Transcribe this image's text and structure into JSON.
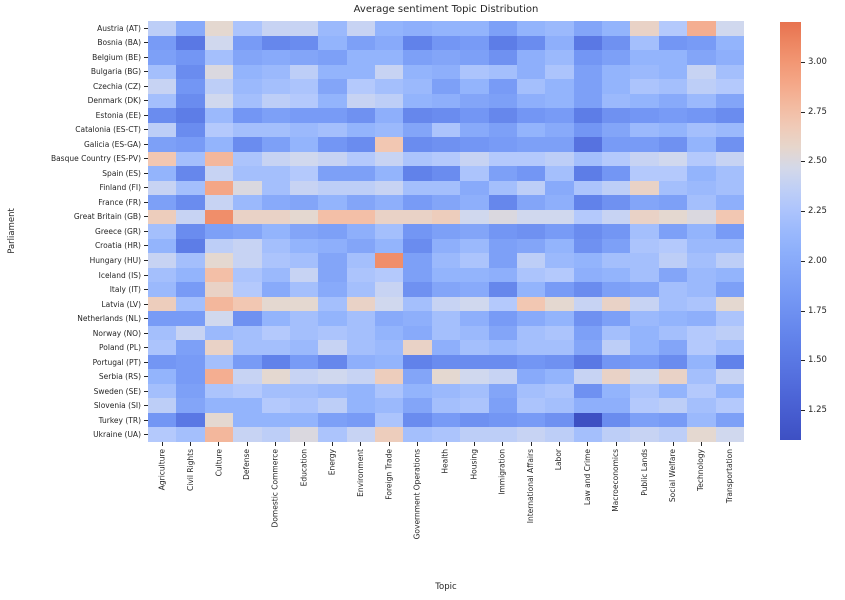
{
  "chart_data": {
    "type": "heatmap",
    "title": "Average sentiment Topic Distribution",
    "xlabel": "Topic",
    "ylabel": "Parliament",
    "colormap": "coolwarm",
    "legend_position": "right-colorbar",
    "grid": false,
    "color_scale": {
      "vmin": 1.1,
      "vmax": 3.2,
      "anchors": [
        {
          "value": 1.1,
          "color": "#3D50C3"
        },
        {
          "value": 1.35,
          "color": "#4F68DA"
        },
        {
          "value": 1.6,
          "color": "#6182EA"
        },
        {
          "value": 1.85,
          "color": "#789BF6"
        },
        {
          "value": 2.1,
          "color": "#93B4FC"
        },
        {
          "value": 2.3,
          "color": "#B4C9FC"
        },
        {
          "value": 2.45,
          "color": "#D0D8EE"
        },
        {
          "value": 2.55,
          "color": "#E4D8D0"
        },
        {
          "value": 2.7,
          "color": "#F2C7B2"
        },
        {
          "value": 2.9,
          "color": "#F4A686"
        },
        {
          "value": 3.05,
          "color": "#F08E6A"
        },
        {
          "value": 3.2,
          "color": "#E7724F"
        }
      ]
    },
    "colorbar_ticks": [
      {
        "label": "3.00",
        "value": 3.0
      },
      {
        "label": "2.75",
        "value": 2.75
      },
      {
        "label": "2.50",
        "value": 2.5
      },
      {
        "label": "2.25",
        "value": 2.25
      },
      {
        "label": "2.00",
        "value": 2.0
      },
      {
        "label": "1.75",
        "value": 1.75
      },
      {
        "label": "1.50",
        "value": 1.5
      },
      {
        "label": "1.25",
        "value": 1.25
      }
    ],
    "columns": [
      "Agriculture",
      "Civil Rights",
      "Culture",
      "Defense",
      "Domestic Commerce",
      "Education",
      "Energy",
      "Environment",
      "Foreign Trade",
      "Government Operations",
      "Health",
      "Housing",
      "Immigration",
      "International Affairs",
      "Labor",
      "Law and Crime",
      "Macroeconomics",
      "Public Lands",
      "Social Welfare",
      "Technology",
      "Transportation"
    ],
    "rows": [
      "Austria (AT)",
      "Bosnia (BA)",
      "Belgium (BE)",
      "Bulgaria (BG)",
      "Czechia (CZ)",
      "Denmark (DK)",
      "Estonia (EE)",
      "Catalonia (ES-CT)",
      "Galicia (ES-GA)",
      "Basque Country (ES-PV)",
      "Spain (ES)",
      "Finland (FI)",
      "France (FR)",
      "Great Britain (GB)",
      "Greece (GR)",
      "Croatia (HR)",
      "Hungary (HU)",
      "Iceland (IS)",
      "Italy (IT)",
      "Latvia (LV)",
      "Netherlands (NL)",
      "Norway (NO)",
      "Poland (PL)",
      "Portugal (PT)",
      "Serbia (RS)",
      "Sweden (SE)",
      "Slovenia (SI)",
      "Turkey (TR)",
      "Ukraine (UA)"
    ],
    "values": [
      [
        2.35,
        2.0,
        2.55,
        2.25,
        2.4,
        2.4,
        2.15,
        2.4,
        2.1,
        2.05,
        2.1,
        2.1,
        1.9,
        2.1,
        2.15,
        1.95,
        2.1,
        2.6,
        2.3,
        2.85,
        2.45
      ],
      [
        1.85,
        1.5,
        2.45,
        1.85,
        1.65,
        1.7,
        2.1,
        1.9,
        2.0,
        1.6,
        1.8,
        1.85,
        1.55,
        1.7,
        2.05,
        1.5,
        1.75,
        2.2,
        1.8,
        1.85,
        2.1
      ],
      [
        1.9,
        1.8,
        2.2,
        1.95,
        2.0,
        1.95,
        1.9,
        2.1,
        2.1,
        1.9,
        1.95,
        1.9,
        1.75,
        2.05,
        2.15,
        1.8,
        1.9,
        2.1,
        2.1,
        1.95,
        2.05
      ],
      [
        2.2,
        1.7,
        2.5,
        2.1,
        2.15,
        2.35,
        2.1,
        2.1,
        2.4,
        2.1,
        2.05,
        2.25,
        2.2,
        2.05,
        2.25,
        1.9,
        2.1,
        2.15,
        2.1,
        2.4,
        2.2
      ],
      [
        2.4,
        1.8,
        2.35,
        2.15,
        2.2,
        2.25,
        1.95,
        2.3,
        2.2,
        2.15,
        1.9,
        2.1,
        1.85,
        2.2,
        2.1,
        1.9,
        2.1,
        2.25,
        2.2,
        2.35,
        2.3
      ],
      [
        2.2,
        1.7,
        2.45,
        2.2,
        2.35,
        2.3,
        2.1,
        2.4,
        2.35,
        2.1,
        2.05,
        1.95,
        1.9,
        2.05,
        2.1,
        1.9,
        2.15,
        2.1,
        2.0,
        2.15,
        1.95
      ],
      [
        1.7,
        1.55,
        2.15,
        1.8,
        1.9,
        1.85,
        1.85,
        1.75,
        2.05,
        1.65,
        1.7,
        1.8,
        1.65,
        1.8,
        1.85,
        1.55,
        1.75,
        1.8,
        1.85,
        1.8,
        1.7
      ],
      [
        2.35,
        1.7,
        2.3,
        2.2,
        2.2,
        2.15,
        2.2,
        2.1,
        2.15,
        1.95,
        2.25,
        2.0,
        1.9,
        2.1,
        2.0,
        1.8,
        1.95,
        2.15,
        2.1,
        2.2,
        2.15
      ],
      [
        1.9,
        1.85,
        2.1,
        1.7,
        1.9,
        2.1,
        1.8,
        1.7,
        2.7,
        1.7,
        1.75,
        1.8,
        1.85,
        1.9,
        1.9,
        1.45,
        1.85,
        1.85,
        1.75,
        2.1,
        1.75
      ],
      [
        2.7,
        2.2,
        2.8,
        2.25,
        2.4,
        2.45,
        2.4,
        2.3,
        2.4,
        2.25,
        2.3,
        2.4,
        2.3,
        2.3,
        2.35,
        2.2,
        2.3,
        2.4,
        2.45,
        2.3,
        2.4
      ],
      [
        2.1,
        1.65,
        2.4,
        2.2,
        2.2,
        2.3,
        1.9,
        1.9,
        2.1,
        1.6,
        1.7,
        2.25,
        1.9,
        1.8,
        2.2,
        1.55,
        1.8,
        2.3,
        2.3,
        2.1,
        2.2
      ],
      [
        2.4,
        2.2,
        2.9,
        2.5,
        2.2,
        2.4,
        2.35,
        2.35,
        2.4,
        2.2,
        2.2,
        2.0,
        2.2,
        2.35,
        2.0,
        2.25,
        2.35,
        2.6,
        2.2,
        2.15,
        2.2
      ],
      [
        1.9,
        1.7,
        2.4,
        2.15,
        2.0,
        1.95,
        2.1,
        1.95,
        2.05,
        1.85,
        1.95,
        2.05,
        1.65,
        1.95,
        2.05,
        1.6,
        1.75,
        1.95,
        1.9,
        2.2,
        2.05
      ],
      [
        2.65,
        2.4,
        3.05,
        2.6,
        2.6,
        2.55,
        2.75,
        2.75,
        2.6,
        2.6,
        2.65,
        2.45,
        2.5,
        2.45,
        2.45,
        2.3,
        2.4,
        2.6,
        2.55,
        2.5,
        2.7
      ],
      [
        2.2,
        1.7,
        1.9,
        1.95,
        2.1,
        1.95,
        1.9,
        2.05,
        2.2,
        1.8,
        1.9,
        1.95,
        1.8,
        1.75,
        1.85,
        1.7,
        1.8,
        2.2,
        1.9,
        2.1,
        1.85
      ],
      [
        2.1,
        1.55,
        2.35,
        2.4,
        2.2,
        2.1,
        2.05,
        1.95,
        2.1,
        1.7,
        2.05,
        2.15,
        1.9,
        1.95,
        2.1,
        1.75,
        1.9,
        2.25,
        2.3,
        2.15,
        2.15
      ],
      [
        2.4,
        2.2,
        2.55,
        2.4,
        2.25,
        2.2,
        1.95,
        2.2,
        3.05,
        1.9,
        2.15,
        2.25,
        1.9,
        2.35,
        2.15,
        2.1,
        2.2,
        2.2,
        2.35,
        2.2,
        2.35
      ],
      [
        2.2,
        2.1,
        2.75,
        2.25,
        2.15,
        2.4,
        1.95,
        2.25,
        2.3,
        1.9,
        2.1,
        2.1,
        2.05,
        2.25,
        2.3,
        2.05,
        2.1,
        2.2,
        1.95,
        2.15,
        2.1
      ],
      [
        2.15,
        1.85,
        2.6,
        2.3,
        2.0,
        2.2,
        2.0,
        2.2,
        2.4,
        1.75,
        1.95,
        2.0,
        1.65,
        2.1,
        1.85,
        1.7,
        1.9,
        1.95,
        2.2,
        2.15,
        1.9
      ],
      [
        2.65,
        2.2,
        2.8,
        2.7,
        2.55,
        2.55,
        2.2,
        2.6,
        2.45,
        2.2,
        2.4,
        2.45,
        2.3,
        2.7,
        2.55,
        2.4,
        2.6,
        2.4,
        2.2,
        2.25,
        2.55
      ],
      [
        1.85,
        1.85,
        2.45,
        1.75,
        2.1,
        2.2,
        2.1,
        2.2,
        2.0,
        2.05,
        2.2,
        2.05,
        1.85,
        2.0,
        2.1,
        1.75,
        1.9,
        2.15,
        2.1,
        2.05,
        2.25
      ],
      [
        2.2,
        2.4,
        2.15,
        2.2,
        2.3,
        2.2,
        2.25,
        2.2,
        2.1,
        2.0,
        2.2,
        2.15,
        1.95,
        2.2,
        2.25,
        1.9,
        2.2,
        2.1,
        2.2,
        2.3,
        2.35
      ],
      [
        2.25,
        1.9,
        2.6,
        2.2,
        2.2,
        2.15,
        2.4,
        2.2,
        2.15,
        2.6,
        2.05,
        2.2,
        2.15,
        2.2,
        2.2,
        1.95,
        2.35,
        2.1,
        1.95,
        2.3,
        2.2
      ],
      [
        1.8,
        1.85,
        2.2,
        1.85,
        1.6,
        1.85,
        1.65,
        2.05,
        2.1,
        1.6,
        1.7,
        1.7,
        1.7,
        1.8,
        1.75,
        1.5,
        1.8,
        1.85,
        1.7,
        2.1,
        1.6
      ],
      [
        2.1,
        1.85,
        2.85,
        2.4,
        2.55,
        2.4,
        2.45,
        2.4,
        2.65,
        1.95,
        2.55,
        2.45,
        2.4,
        2.0,
        2.1,
        2.4,
        2.6,
        2.45,
        2.6,
        2.2,
        2.4
      ],
      [
        2.2,
        1.9,
        2.25,
        2.3,
        2.2,
        2.2,
        2.15,
        2.1,
        2.25,
        2.1,
        2.15,
        2.2,
        1.95,
        2.2,
        2.25,
        1.75,
        2.1,
        2.25,
        2.1,
        2.3,
        2.1
      ],
      [
        2.35,
        1.95,
        2.1,
        2.1,
        2.3,
        2.25,
        2.35,
        2.1,
        2.15,
        1.95,
        2.2,
        2.25,
        1.9,
        2.25,
        2.2,
        2.05,
        2.05,
        2.3,
        2.35,
        2.2,
        2.3
      ],
      [
        1.8,
        1.5,
        2.55,
        2.1,
        2.1,
        2.1,
        1.9,
        1.85,
        2.25,
        1.7,
        1.85,
        1.75,
        1.8,
        1.85,
        1.75,
        1.1,
        1.7,
        1.9,
        1.85,
        2.15,
        1.9
      ],
      [
        2.3,
        2.2,
        2.8,
        2.4,
        2.35,
        2.5,
        2.25,
        2.4,
        2.65,
        2.2,
        2.25,
        2.35,
        2.35,
        2.4,
        2.35,
        2.2,
        2.35,
        2.4,
        2.35,
        2.55,
        2.45
      ]
    ]
  }
}
